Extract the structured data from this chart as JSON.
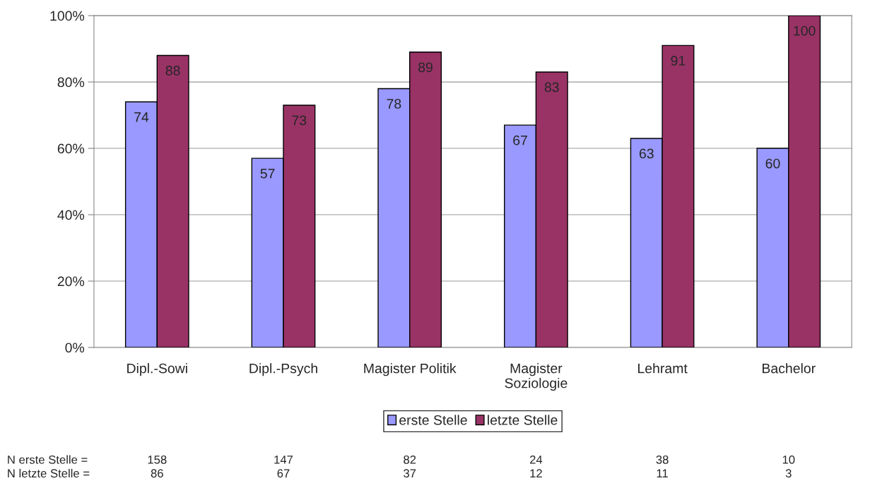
{
  "chart_data": {
    "type": "bar",
    "categories": [
      "Dipl.-Sowi",
      "Dipl.-Psych",
      "Magister Politik",
      "Magister\nSoziologie",
      "Lehramt",
      "Bachelor"
    ],
    "series": [
      {
        "name": "erste Stelle",
        "color": "#9999ff",
        "values": [
          74,
          57,
          78,
          67,
          63,
          60
        ]
      },
      {
        "name": "letzte Stelle",
        "color": "#993366",
        "values": [
          88,
          73,
          89,
          83,
          91,
          100
        ]
      }
    ],
    "ylim": [
      0,
      100
    ],
    "yticks": [
      {
        "value": 0,
        "label": "0%"
      },
      {
        "value": 20,
        "label": "20%"
      },
      {
        "value": 40,
        "label": "40%"
      },
      {
        "value": 60,
        "label": "60%"
      },
      {
        "value": 80,
        "label": "80%"
      },
      {
        "value": 100,
        "label": "100%"
      }
    ],
    "grid": "y",
    "legend": "bottom",
    "data_labels": true,
    "annotations": [
      "N erste Stelle =",
      "158",
      "147",
      "82",
      "24",
      "38",
      "10",
      "N letzte Stelle =",
      "86",
      "67",
      "37",
      "12",
      "11",
      "3"
    ]
  }
}
